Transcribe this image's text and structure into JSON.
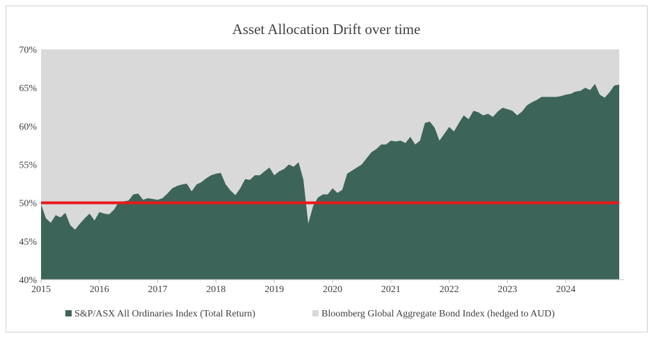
{
  "chart_data": {
    "type": "area",
    "title": "Asset Allocation Drift over time",
    "xlabel": "",
    "ylabel": "",
    "x_range": [
      2015,
      2025
    ],
    "ylim": [
      40,
      70
    ],
    "y_ticks": [
      "40%",
      "45%",
      "50%",
      "55%",
      "60%",
      "65%",
      "70%"
    ],
    "x_ticks": [
      "2015",
      "2016",
      "2017",
      "2018",
      "2019",
      "2020",
      "2021",
      "2022",
      "2023",
      "2024"
    ],
    "grid": false,
    "legend_position": "bottom",
    "stacked_to_percent": 100,
    "series": [
      {
        "name": "S&P/ASX All Ordinaries Index (Total Return)",
        "color": "#3d6459",
        "x": [
          2015.0,
          2015.083,
          2015.167,
          2015.25,
          2015.333,
          2015.417,
          2015.5,
          2015.583,
          2015.667,
          2015.75,
          2015.833,
          2015.917,
          2016.0,
          2016.083,
          2016.167,
          2016.25,
          2016.333,
          2016.417,
          2016.5,
          2016.583,
          2016.667,
          2016.75,
          2016.833,
          2016.917,
          2017.0,
          2017.083,
          2017.167,
          2017.25,
          2017.333,
          2017.417,
          2017.5,
          2017.583,
          2017.667,
          2017.75,
          2017.833,
          2017.917,
          2018.0,
          2018.083,
          2018.167,
          2018.25,
          2018.333,
          2018.417,
          2018.5,
          2018.583,
          2018.667,
          2018.75,
          2018.833,
          2018.917,
          2019.0,
          2019.083,
          2019.167,
          2019.25,
          2019.333,
          2019.417,
          2019.5,
          2019.583,
          2019.667,
          2019.75,
          2019.833,
          2019.917,
          2020.0,
          2020.083,
          2020.167,
          2020.25,
          2020.333,
          2020.417,
          2020.5,
          2020.583,
          2020.667,
          2020.75,
          2020.833,
          2020.917,
          2021.0,
          2021.083,
          2021.167,
          2021.25,
          2021.333,
          2021.417,
          2021.5,
          2021.583,
          2021.667,
          2021.75,
          2021.833,
          2021.917,
          2022.0,
          2022.083,
          2022.167,
          2022.25,
          2022.333,
          2022.417,
          2022.5,
          2022.583,
          2022.667,
          2022.75,
          2022.833,
          2022.917,
          2023.0,
          2023.083,
          2023.167,
          2023.25,
          2023.333,
          2023.417,
          2023.5,
          2023.583,
          2023.667,
          2023.75,
          2023.833,
          2023.917,
          2024.0,
          2024.083,
          2024.167,
          2024.25,
          2024.333,
          2024.417,
          2024.5,
          2024.583,
          2024.667,
          2024.75,
          2024.833,
          2024.917
        ],
        "values": [
          49.8,
          48.0,
          47.4,
          48.4,
          48.1,
          48.7,
          47.1,
          46.5,
          47.3,
          48.0,
          48.6,
          47.7,
          48.8,
          48.6,
          48.5,
          49.1,
          50.1,
          50.2,
          50.3,
          51.1,
          51.2,
          50.4,
          50.6,
          50.5,
          50.4,
          50.6,
          51.2,
          51.9,
          52.2,
          52.4,
          52.5,
          51.5,
          52.4,
          52.7,
          53.2,
          53.6,
          53.8,
          53.9,
          52.4,
          51.6,
          51.0,
          51.9,
          53.1,
          53.0,
          53.6,
          53.6,
          54.1,
          54.6,
          53.6,
          54.1,
          54.4,
          55.0,
          54.7,
          55.3,
          53.0,
          47.3,
          49.6,
          50.7,
          51.1,
          51.1,
          51.9,
          51.3,
          51.7,
          53.8,
          54.2,
          54.6,
          55.0,
          55.8,
          56.6,
          57.0,
          57.6,
          57.6,
          58.1,
          58.0,
          58.1,
          57.8,
          58.6,
          57.6,
          58.1,
          60.4,
          60.6,
          59.8,
          58.1,
          59.0,
          59.9,
          59.3,
          60.4,
          61.4,
          60.9,
          62.0,
          61.8,
          61.4,
          61.6,
          61.2,
          61.9,
          62.4,
          62.2,
          62.0,
          61.4,
          61.9,
          62.7,
          63.1,
          63.4,
          63.8,
          63.8,
          63.8,
          63.8,
          63.9,
          64.1,
          64.2,
          64.5,
          64.6,
          65.0,
          64.7,
          65.5,
          64.1,
          63.7,
          64.4,
          65.3,
          65.4
        ]
      },
      {
        "name": "Bloomberg Global Aggregate Bond Index (hedged to AUD)",
        "color": "#d9d9d9"
      }
    ],
    "reference_line": {
      "value": 50,
      "color": "#e8191c"
    }
  }
}
